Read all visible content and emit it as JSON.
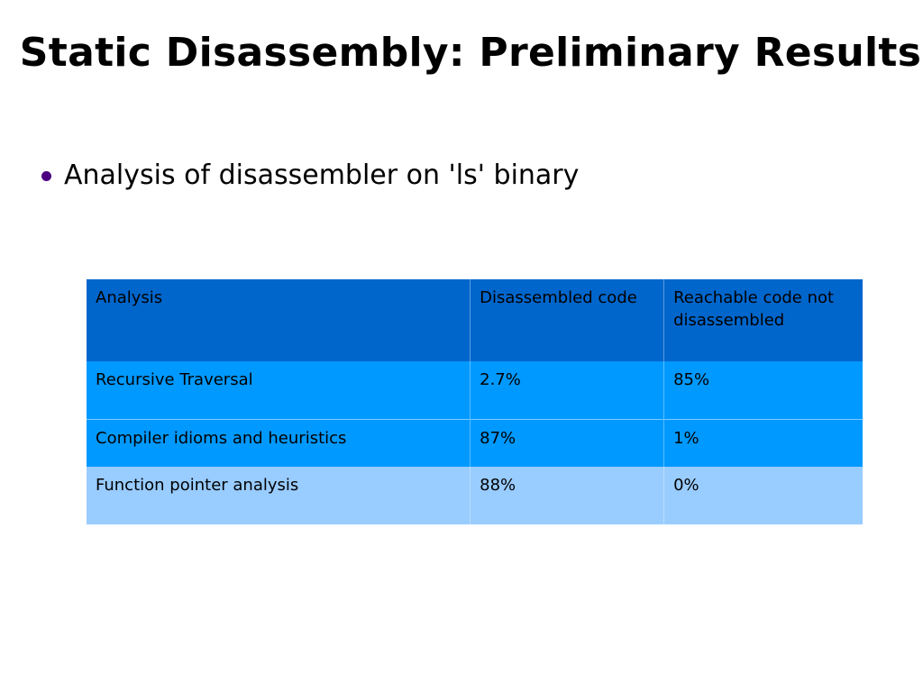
{
  "slide": {
    "title": "Static Disassembly: Preliminary Results",
    "bullet": "Analysis of disassembler on 'ls' binary",
    "colors": {
      "bullet": "#4b0082",
      "header_row": "#0066cc",
      "body_row": "#0099ff",
      "last_row": "#99ccff"
    }
  },
  "table": {
    "headers": [
      "Analysis",
      "Disassembled code",
      "Reachable code not disassembled"
    ],
    "rows": [
      [
        "Recursive Traversal",
        "2.7%",
        "85%"
      ],
      [
        "Compiler idioms and heuristics",
        "87%",
        "1%"
      ],
      [
        "Function pointer analysis",
        "88%",
        "0%"
      ]
    ]
  }
}
